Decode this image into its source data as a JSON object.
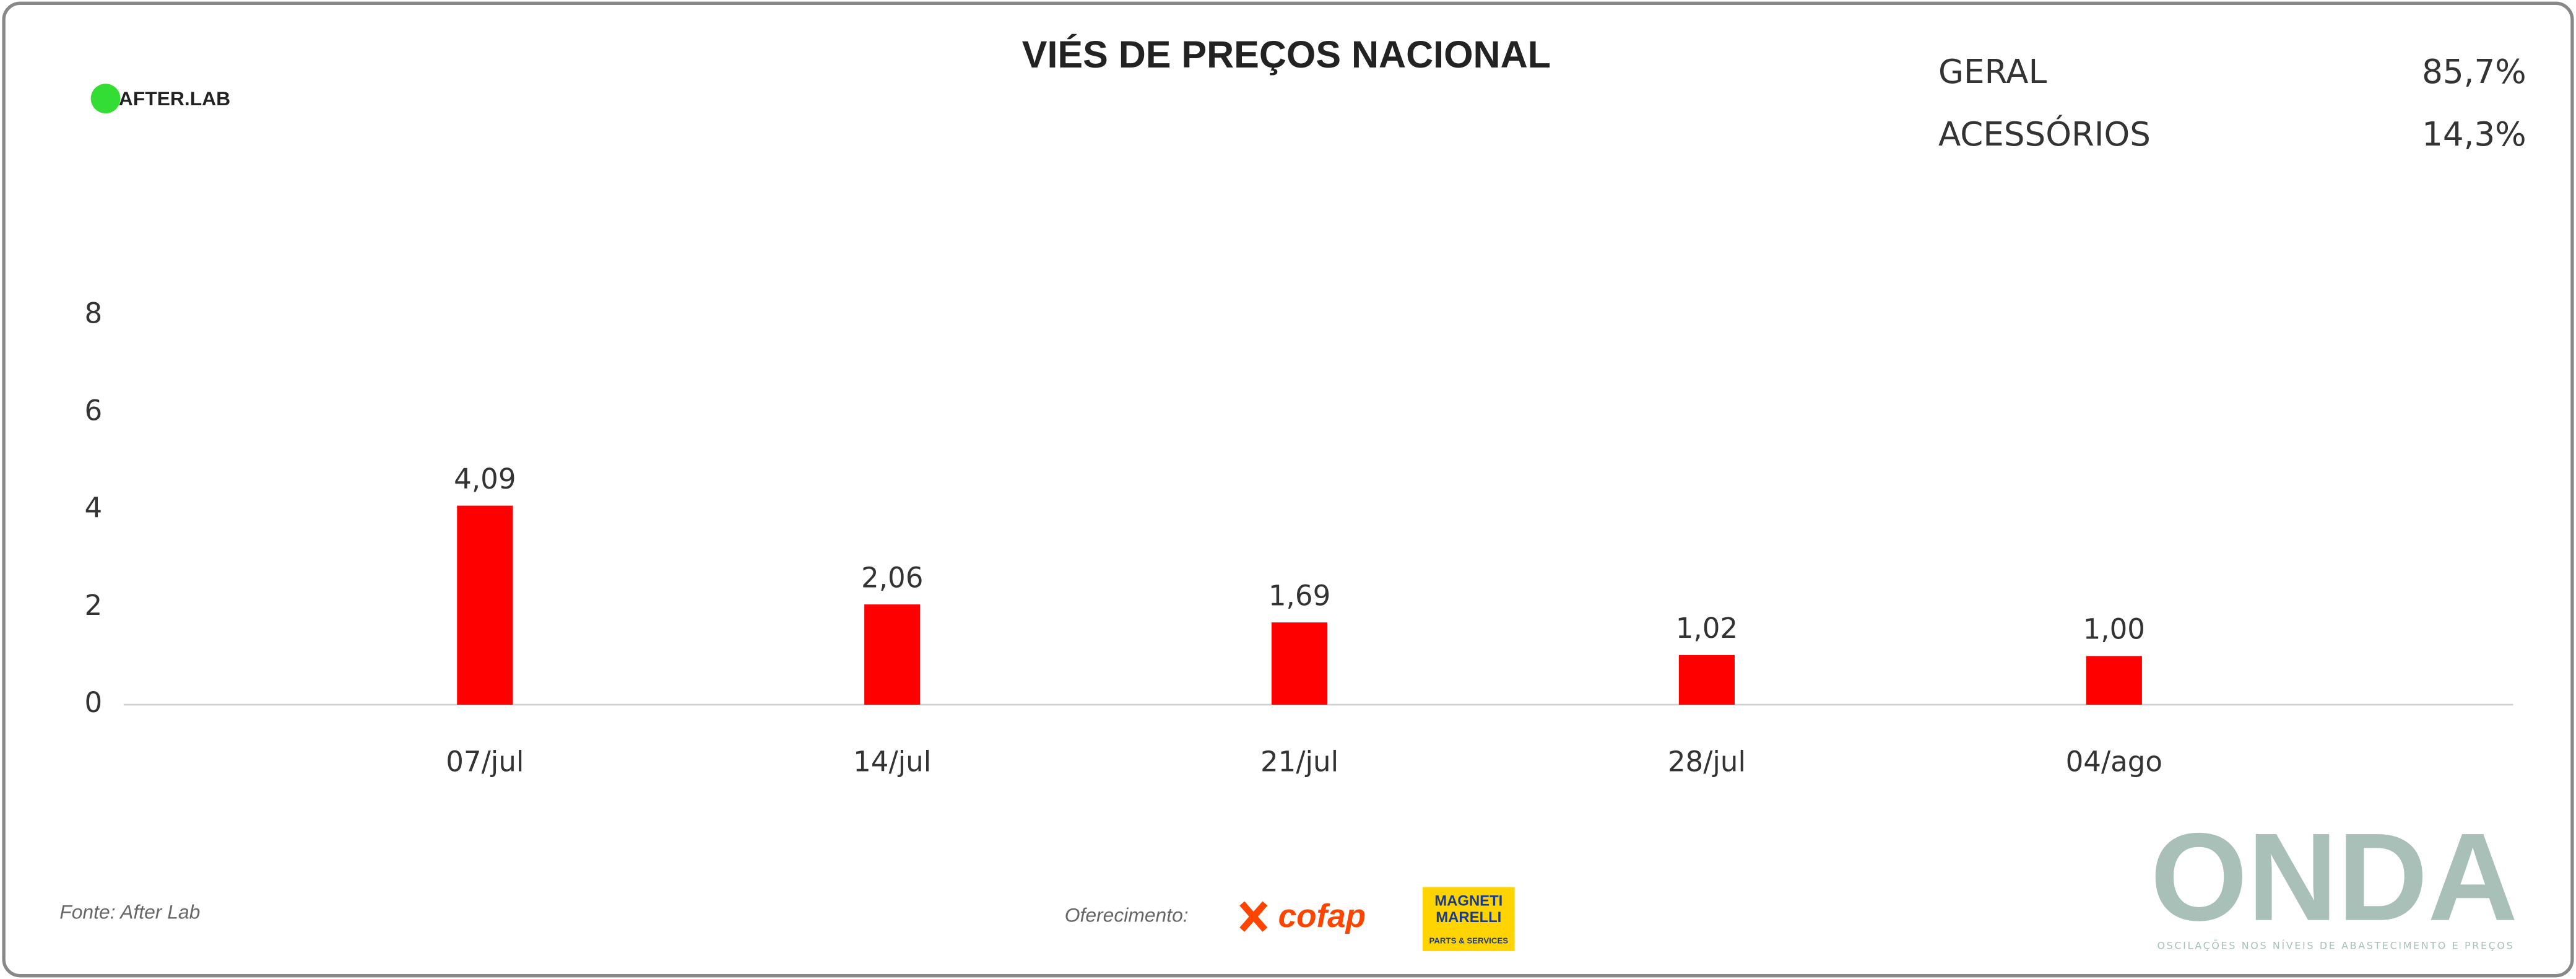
{
  "chart_data": {
    "type": "bar",
    "title": "VIÉS DE PREÇOS NACIONAL",
    "categories": [
      "07/jul",
      "14/jul",
      "21/jul",
      "28/jul",
      "04/ago"
    ],
    "values": [
      4.09,
      2.06,
      1.69,
      1.02,
      1.0
    ],
    "value_labels": [
      "4,09",
      "2,06",
      "1,69",
      "1,02",
      "1,00"
    ],
    "color": "#ff0000",
    "ylim": [
      0,
      8
    ],
    "yticks": [
      0,
      2,
      4,
      6,
      8
    ]
  },
  "brand": "AFTER.LAB",
  "summary": [
    {
      "label": "GERAL",
      "value": "85,7%"
    },
    {
      "label": "ACESSÓRIOS",
      "value": "14,3%"
    }
  ],
  "footer": {
    "source": "Fonte: After Lab",
    "sponsor": "Oferecimento:",
    "cofap": "cofap",
    "marelli": [
      "MAGNETI",
      "MARELLI",
      "PARTS & SERVICES"
    ],
    "onda": "ONDA",
    "onda_tagline": "OSCILAÇÕES NOS NÍVEIS DE ABASTECIMENTO E PREÇOS"
  }
}
